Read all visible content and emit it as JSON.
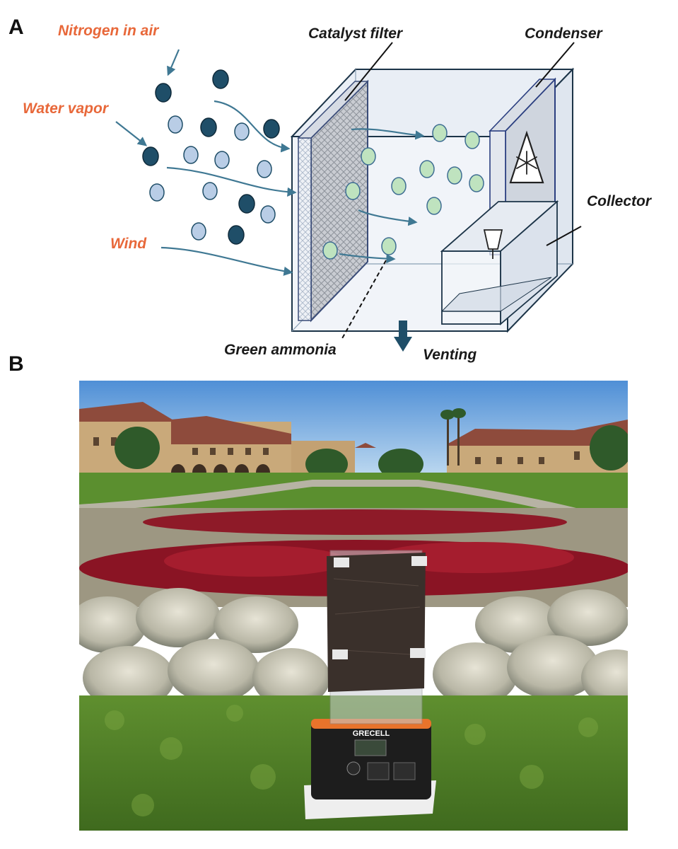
{
  "panels": {
    "a": {
      "letter": "A"
    },
    "b": {
      "letter": "B"
    }
  },
  "diagram": {
    "labels": {
      "nitrogen": "Nitrogen in air",
      "water_vapor": "Water vapor",
      "wind": "Wind",
      "catalyst_filter": "Catalyst filter",
      "condenser": "Condenser",
      "collector": "Collector",
      "green_ammonia": "Green ammonia",
      "venting": "Venting"
    },
    "colors": {
      "label_orange": "#e8683a",
      "nitrogen_molecule": "#1f4e68",
      "water_molecule": "#b9cde6",
      "ammonia_molecule": "#bfe3bf",
      "arrow": "#3f7893",
      "box_outline": "#1c3448"
    },
    "icons": {
      "condenser_warning": "snowflake-warning-icon",
      "vent": "down-arrow-icon"
    }
  },
  "photo": {
    "device_brand": "GRECELL"
  }
}
